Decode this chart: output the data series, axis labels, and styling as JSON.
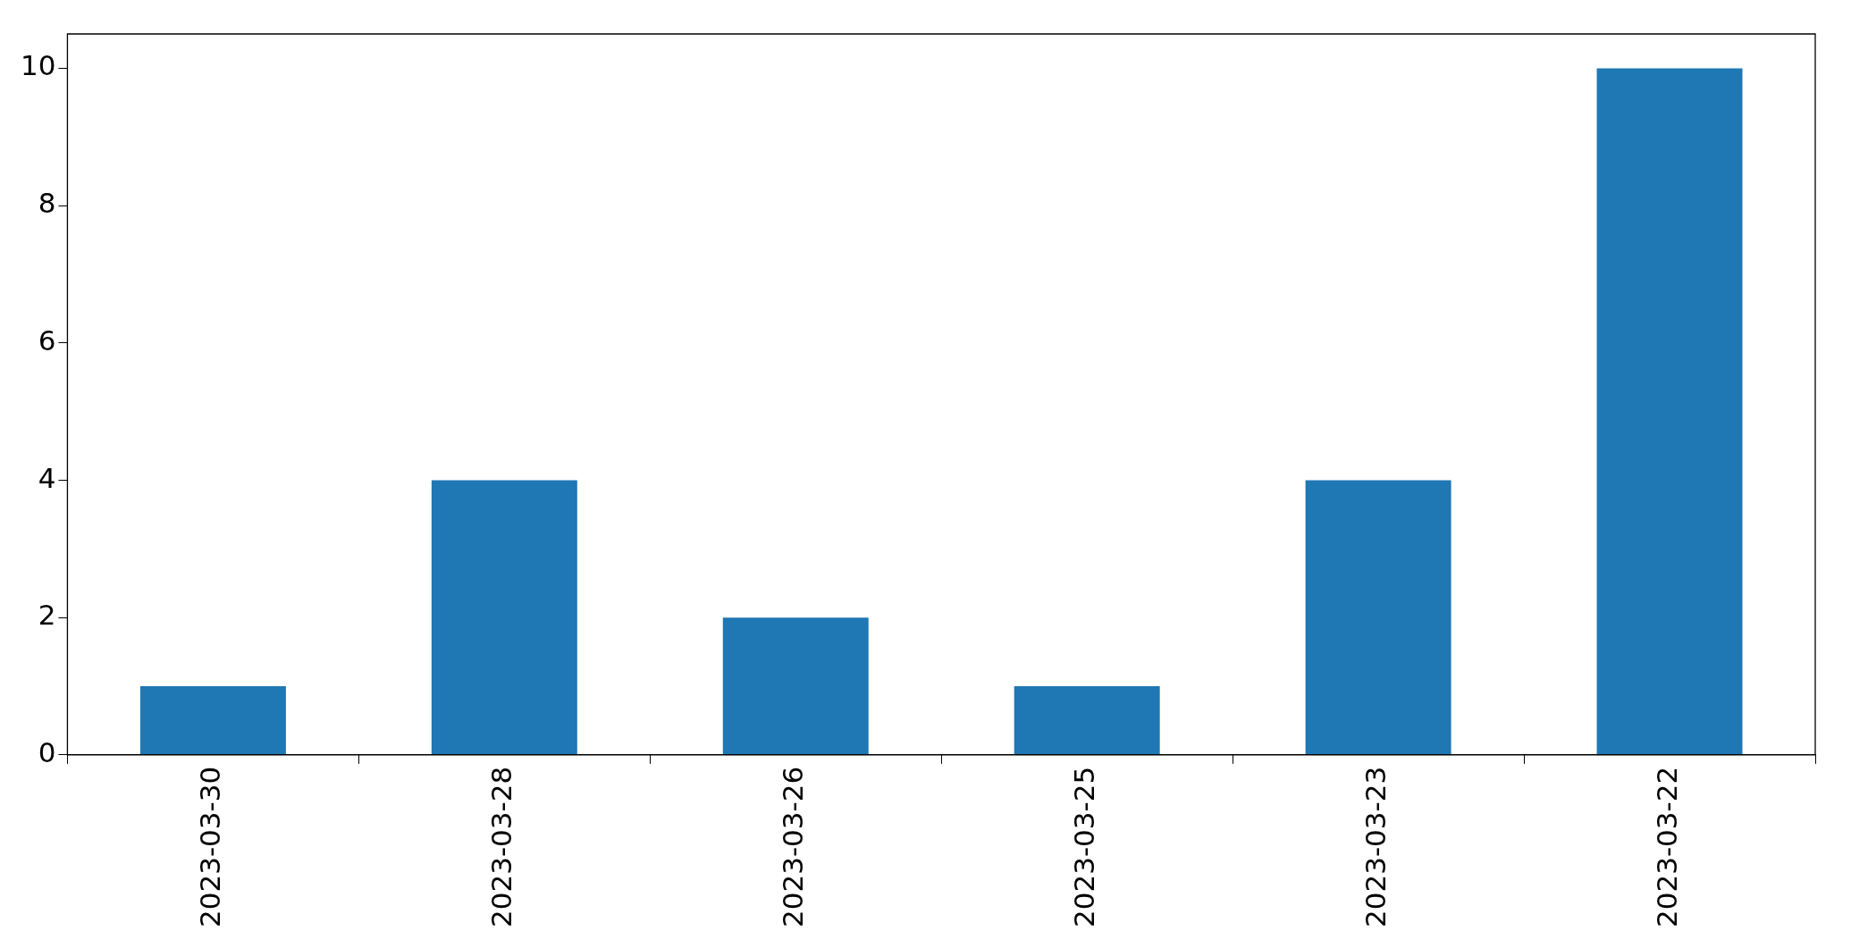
{
  "chart_data": {
    "type": "bar",
    "categories": [
      "2023-03-30",
      "2023-03-28",
      "2023-03-26",
      "2023-03-25",
      "2023-03-23",
      "2023-03-22"
    ],
    "values": [
      1,
      4,
      2,
      1,
      4,
      10
    ],
    "color": "#1f77b4",
    "ylim": [
      0,
      10.5
    ],
    "yticks": [
      0,
      2,
      4,
      6,
      8,
      10
    ],
    "grid": false,
    "legend": false
  }
}
